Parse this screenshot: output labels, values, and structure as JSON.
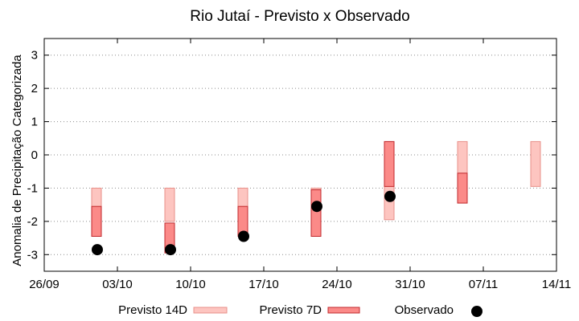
{
  "chart_data": {
    "type": "range-bar",
    "title": "Rio Jutaí - Previsto x Observado",
    "xlabel": "",
    "ylabel": "Anomalia de Precipitação Categorizada",
    "xlim": [
      "2023-09-26",
      "2023-11-14"
    ],
    "ylim": [
      -3.5,
      3.5
    ],
    "yticks": [
      -3,
      -2,
      -1,
      0,
      1,
      2,
      3
    ],
    "xticks": [
      {
        "date": "2023-09-26",
        "label": "26/09"
      },
      {
        "date": "2023-10-03",
        "label": "03/10"
      },
      {
        "date": "2023-10-10",
        "label": "10/10"
      },
      {
        "date": "2023-10-17",
        "label": "17/10"
      },
      {
        "date": "2023-10-24",
        "label": "24/10"
      },
      {
        "date": "2023-10-31",
        "label": "31/10"
      },
      {
        "date": "2023-11-07",
        "label": "07/11"
      },
      {
        "date": "2023-11-14",
        "label": "14/11"
      }
    ],
    "grid": "horizontal dotted",
    "legend": "bottom",
    "series": [
      {
        "name": "Previsto 14D",
        "kind": "range",
        "color": "#fdc5c0",
        "edge": "#e8908a",
        "points": [
          {
            "date": "2023-10-01",
            "low": -2.0,
            "high": -1.0
          },
          {
            "date": "2023-10-08",
            "low": -2.0,
            "high": -1.0
          },
          {
            "date": "2023-10-15",
            "low": -2.0,
            "high": -1.0
          },
          {
            "date": "2023-10-22",
            "low": -2.0,
            "high": -1.0
          },
          {
            "date": "2023-10-29",
            "low": -1.95,
            "high": 0.4
          },
          {
            "date": "2023-11-05",
            "low": -0.95,
            "high": 0.4
          },
          {
            "date": "2023-11-12",
            "low": -0.95,
            "high": 0.4
          }
        ]
      },
      {
        "name": "Previsto 7D",
        "kind": "range",
        "color": "#fb8a88",
        "edge": "#c0282c",
        "points": [
          {
            "date": "2023-10-01",
            "low": -2.45,
            "high": -1.55
          },
          {
            "date": "2023-10-08",
            "low": -2.95,
            "high": -2.05
          },
          {
            "date": "2023-10-15",
            "low": -2.45,
            "high": -1.55
          },
          {
            "date": "2023-10-22",
            "low": -2.45,
            "high": -1.05
          },
          {
            "date": "2023-10-29",
            "low": -0.95,
            "high": 0.4
          },
          {
            "date": "2023-11-05",
            "low": -1.45,
            "high": -0.55
          }
        ]
      },
      {
        "name": "Observado",
        "kind": "point",
        "color": "#000000",
        "points": [
          {
            "date": "2023-10-01",
            "value": -2.85
          },
          {
            "date": "2023-10-08",
            "value": -2.85
          },
          {
            "date": "2023-10-15",
            "value": -2.45
          },
          {
            "date": "2023-10-22",
            "value": -1.55
          },
          {
            "date": "2023-10-29",
            "value": -1.25
          }
        ]
      }
    ]
  }
}
